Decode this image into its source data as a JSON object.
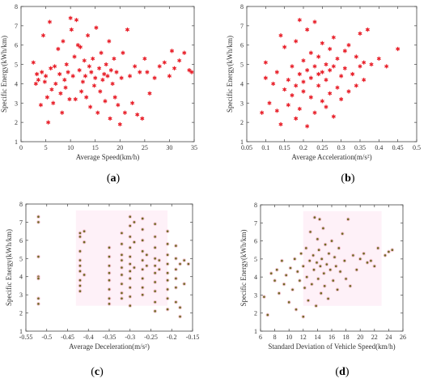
{
  "chart_data": [
    {
      "id": "a",
      "type": "scatter",
      "caption": "a",
      "xlabel": "Average Speed(km/h)",
      "ylabel": "Specific Energy(kWh/km)",
      "xlim": [
        0,
        35
      ],
      "ylim": [
        1,
        8
      ],
      "xticks": [
        "0",
        "5",
        "10",
        "15",
        "20",
        "25",
        "30",
        "35"
      ],
      "yticks": [
        "1",
        "2",
        "3",
        "4",
        "5",
        "6",
        "7",
        "8"
      ],
      "grid": false,
      "marker": "red-star",
      "color": "#e8202a",
      "points": [
        [
          2.5,
          5.1
        ],
        [
          3,
          4.0
        ],
        [
          3.2,
          4.5
        ],
        [
          3.5,
          4.2
        ],
        [
          4,
          2.9
        ],
        [
          4.2,
          4.6
        ],
        [
          4.5,
          6.5
        ],
        [
          4.8,
          4.1
        ],
        [
          5,
          4.4
        ],
        [
          5.3,
          3.3
        ],
        [
          5.5,
          2.0
        ],
        [
          5.8,
          7.2
        ],
        [
          6,
          4.8
        ],
        [
          6.2,
          3.7
        ],
        [
          6.5,
          3.0
        ],
        [
          6.8,
          4.9
        ],
        [
          7,
          4.0
        ],
        [
          7.5,
          5.8
        ],
        [
          7.8,
          4.5
        ],
        [
          8,
          3.5
        ],
        [
          8.3,
          2.5
        ],
        [
          8.5,
          6.2
        ],
        [
          8.8,
          4.2
        ],
        [
          9,
          3.8
        ],
        [
          9.2,
          5.0
        ],
        [
          9.5,
          4.6
        ],
        [
          9.8,
          3.2
        ],
        [
          10,
          7.4
        ],
        [
          10.2,
          6.8
        ],
        [
          10.5,
          4.4
        ],
        [
          10.8,
          5.4
        ],
        [
          11,
          3.2
        ],
        [
          11.2,
          7.3
        ],
        [
          11.5,
          6.0
        ],
        [
          11.8,
          4.7
        ],
        [
          12,
          5.9
        ],
        [
          12.2,
          3.6
        ],
        [
          12.5,
          4.1
        ],
        [
          12.8,
          5.2
        ],
        [
          13,
          4.4
        ],
        [
          13.2,
          3.3
        ],
        [
          13.5,
          6.5
        ],
        [
          13.8,
          4.9
        ],
        [
          14,
          2.8
        ],
        [
          14.2,
          4.6
        ],
        [
          14.5,
          5.3
        ],
        [
          14.8,
          3.9
        ],
        [
          15,
          4.3
        ],
        [
          15.2,
          6.9
        ],
        [
          15.5,
          2.5
        ],
        [
          15.8,
          4.8
        ],
        [
          16,
          3.6
        ],
        [
          16.2,
          5.6
        ],
        [
          16.5,
          4.2
        ],
        [
          16.8,
          4.5
        ],
        [
          17,
          3.1
        ],
        [
          17.2,
          5.0
        ],
        [
          17.5,
          4.4
        ],
        [
          17.8,
          6.2
        ],
        [
          18,
          2.2
        ],
        [
          18.2,
          4.7
        ],
        [
          18.5,
          4.0
        ],
        [
          18.8,
          5.3
        ],
        [
          19,
          3.3
        ],
        [
          19.3,
          4.6
        ],
        [
          19.6,
          2.9
        ],
        [
          20,
          1.9
        ],
        [
          20.3,
          4.3
        ],
        [
          20.6,
          5.6
        ],
        [
          21,
          2.5
        ],
        [
          21.5,
          6.8
        ],
        [
          22,
          4.4
        ],
        [
          22.5,
          3.0
        ],
        [
          23,
          4.9
        ],
        [
          23.5,
          2.4
        ],
        [
          24,
          4.6
        ],
        [
          24.5,
          2.2
        ],
        [
          25,
          5.3
        ],
        [
          25.5,
          4.6
        ],
        [
          26,
          3.5
        ],
        [
          27,
          4.3
        ],
        [
          28,
          4.9
        ],
        [
          29,
          5.1
        ],
        [
          30,
          4.4
        ],
        [
          30.5,
          5.7
        ],
        [
          31,
          4.8
        ],
        [
          32,
          5.2
        ],
        [
          33,
          5.6
        ],
        [
          34,
          4.7
        ],
        [
          34.5,
          4.6
        ]
      ]
    },
    {
      "id": "b",
      "type": "scatter",
      "caption": "b",
      "xlabel": "Average Acceleration(m/s²)",
      "ylabel": "Specific Energy(kWh/km)",
      "xlim": [
        0.05,
        0.5
      ],
      "ylim": [
        1,
        8
      ],
      "xticks": [
        "0.05",
        "0.1",
        "0.15",
        "0.2",
        "0.25",
        "0.3",
        "0.35",
        "0.4",
        "0.45",
        "0.5"
      ],
      "yticks": [
        "1",
        "2",
        "3",
        "4",
        "5",
        "6",
        "7",
        "8"
      ],
      "grid": false,
      "marker": "red-star",
      "color": "#e8202a",
      "points": [
        [
          0.09,
          2.5
        ],
        [
          0.1,
          4.3
        ],
        [
          0.1,
          5.1
        ],
        [
          0.11,
          3.0
        ],
        [
          0.12,
          4.0
        ],
        [
          0.13,
          2.6
        ],
        [
          0.13,
          4.6
        ],
        [
          0.14,
          6.5
        ],
        [
          0.14,
          1.9
        ],
        [
          0.15,
          3.7
        ],
        [
          0.15,
          5.9
        ],
        [
          0.16,
          4.2
        ],
        [
          0.16,
          2.9
        ],
        [
          0.17,
          3.4
        ],
        [
          0.17,
          4.9
        ],
        [
          0.18,
          2.2
        ],
        [
          0.18,
          3.9
        ],
        [
          0.18,
          6.2
        ],
        [
          0.19,
          4.5
        ],
        [
          0.19,
          2.7
        ],
        [
          0.19,
          7.3
        ],
        [
          0.2,
          3.6
        ],
        [
          0.2,
          5.2
        ],
        [
          0.2,
          4.1
        ],
        [
          0.21,
          1.8
        ],
        [
          0.21,
          4.7
        ],
        [
          0.21,
          6.8
        ],
        [
          0.22,
          3.3
        ],
        [
          0.22,
          5.6
        ],
        [
          0.22,
          4.3
        ],
        [
          0.23,
          2.5
        ],
        [
          0.23,
          4.9
        ],
        [
          0.23,
          7.2
        ],
        [
          0.24,
          3.9
        ],
        [
          0.24,
          5.4
        ],
        [
          0.24,
          4.5
        ],
        [
          0.25,
          3.1
        ],
        [
          0.25,
          6.1
        ],
        [
          0.25,
          4.6
        ],
        [
          0.26,
          2.8
        ],
        [
          0.26,
          5.0
        ],
        [
          0.26,
          4.2
        ],
        [
          0.27,
          3.5
        ],
        [
          0.27,
          5.8
        ],
        [
          0.27,
          4.7
        ],
        [
          0.28,
          2.3
        ],
        [
          0.28,
          4.9
        ],
        [
          0.28,
          6.4
        ],
        [
          0.29,
          3.8
        ],
        [
          0.29,
          5.3
        ],
        [
          0.3,
          4.4
        ],
        [
          0.3,
          3.2
        ],
        [
          0.31,
          5.7
        ],
        [
          0.31,
          4.8
        ],
        [
          0.32,
          3.6
        ],
        [
          0.32,
          6.0
        ],
        [
          0.33,
          4.5
        ],
        [
          0.34,
          5.4
        ],
        [
          0.34,
          3.9
        ],
        [
          0.35,
          6.6
        ],
        [
          0.35,
          4.9
        ],
        [
          0.36,
          5.1
        ],
        [
          0.36,
          4.2
        ],
        [
          0.37,
          6.8
        ],
        [
          0.38,
          5.0
        ],
        [
          0.4,
          5.3
        ],
        [
          0.42,
          4.9
        ],
        [
          0.45,
          5.8
        ]
      ]
    },
    {
      "id": "c",
      "type": "scatter",
      "caption": "c",
      "xlabel": "Average Deceleration(m/s²)",
      "ylabel": "Specific Energy(kWh/km)",
      "xlim": [
        -0.55,
        -0.15
      ],
      "ylim": [
        1,
        8
      ],
      "xticks": [
        "-0.55",
        "-0.5",
        "-0.45",
        "-0.4",
        "-0.35",
        "-0.3",
        "-0.25",
        "-0.2",
        "-0.15"
      ],
      "yticks": [
        "1",
        "2",
        "3",
        "4",
        "5",
        "6",
        "7",
        "8"
      ],
      "grid": false,
      "marker": "olive-dot",
      "color": "#6b6b22",
      "points": [
        [
          -0.52,
          7.3
        ],
        [
          -0.52,
          7.0
        ],
        [
          -0.52,
          5.1
        ],
        [
          -0.52,
          4.0
        ],
        [
          -0.52,
          3.9
        ],
        [
          -0.52,
          2.8
        ],
        [
          -0.52,
          2.5
        ],
        [
          -0.42,
          6.4
        ],
        [
          -0.42,
          6.2
        ],
        [
          -0.42,
          5.4
        ],
        [
          -0.42,
          4.9
        ],
        [
          -0.42,
          4.6
        ],
        [
          -0.42,
          4.3
        ],
        [
          -0.42,
          3.8
        ],
        [
          -0.42,
          3.5
        ],
        [
          -0.42,
          3.2
        ],
        [
          -0.41,
          6.5
        ],
        [
          -0.41,
          5.9
        ],
        [
          -0.41,
          4.1
        ],
        [
          -0.35,
          5.6
        ],
        [
          -0.35,
          5.1
        ],
        [
          -0.35,
          4.6
        ],
        [
          -0.35,
          4.2
        ],
        [
          -0.35,
          3.8
        ],
        [
          -0.35,
          3.3
        ],
        [
          -0.35,
          2.8
        ],
        [
          -0.35,
          2.5
        ],
        [
          -0.32,
          6.4
        ],
        [
          -0.32,
          5.8
        ],
        [
          -0.32,
          5.2
        ],
        [
          -0.32,
          4.9
        ],
        [
          -0.32,
          4.5
        ],
        [
          -0.32,
          4.1
        ],
        [
          -0.32,
          3.6
        ],
        [
          -0.32,
          3.1
        ],
        [
          -0.32,
          2.8
        ],
        [
          -0.3,
          7.3
        ],
        [
          -0.3,
          6.8
        ],
        [
          -0.3,
          6.2
        ],
        [
          -0.3,
          5.6
        ],
        [
          -0.3,
          5.1
        ],
        [
          -0.3,
          4.7
        ],
        [
          -0.3,
          4.3
        ],
        [
          -0.3,
          3.9
        ],
        [
          -0.3,
          3.4
        ],
        [
          -0.3,
          2.9
        ],
        [
          -0.3,
          2.4
        ],
        [
          -0.29,
          7.0
        ],
        [
          -0.29,
          5.9
        ],
        [
          -0.29,
          4.5
        ],
        [
          -0.27,
          7.2
        ],
        [
          -0.27,
          6.6
        ],
        [
          -0.27,
          6.0
        ],
        [
          -0.27,
          5.4
        ],
        [
          -0.27,
          4.9
        ],
        [
          -0.27,
          4.4
        ],
        [
          -0.27,
          3.9
        ],
        [
          -0.27,
          3.4
        ],
        [
          -0.27,
          3.0
        ],
        [
          -0.26,
          5.2
        ],
        [
          -0.26,
          4.6
        ],
        [
          -0.24,
          6.9
        ],
        [
          -0.24,
          6.2
        ],
        [
          -0.24,
          5.6
        ],
        [
          -0.24,
          5.0
        ],
        [
          -0.24,
          4.6
        ],
        [
          -0.24,
          4.2
        ],
        [
          -0.24,
          3.7
        ],
        [
          -0.24,
          3.2
        ],
        [
          -0.24,
          2.6
        ],
        [
          -0.24,
          2.1
        ],
        [
          -0.23,
          4.9
        ],
        [
          -0.23,
          4.4
        ],
        [
          -0.21,
          6.5
        ],
        [
          -0.21,
          5.8
        ],
        [
          -0.21,
          5.2
        ],
        [
          -0.21,
          4.7
        ],
        [
          -0.21,
          4.2
        ],
        [
          -0.21,
          3.8
        ],
        [
          -0.21,
          3.3
        ],
        [
          -0.21,
          2.8
        ],
        [
          -0.21,
          2.2
        ],
        [
          -0.19,
          5.7
        ],
        [
          -0.19,
          5.0
        ],
        [
          -0.19,
          4.4
        ],
        [
          -0.19,
          3.9
        ],
        [
          -0.19,
          3.4
        ],
        [
          -0.19,
          2.6
        ],
        [
          -0.18,
          4.7
        ],
        [
          -0.18,
          2.3
        ],
        [
          -0.18,
          1.8
        ],
        [
          -0.17,
          4.9
        ],
        [
          -0.17,
          3.6
        ],
        [
          -0.16,
          4.7
        ]
      ]
    },
    {
      "id": "d",
      "type": "scatter",
      "caption": "d",
      "xlabel": "Standard Deviation of Vehicle Speed(km/h)",
      "ylabel": "Specific Energy(kWh/km)",
      "xlim": [
        6,
        26
      ],
      "ylim": [
        1,
        8
      ],
      "xticks": [
        "6",
        "8",
        "10",
        "12",
        "14",
        "16",
        "18",
        "20",
        "22",
        "24",
        "26"
      ],
      "yticks": [
        "1",
        "2",
        "3",
        "4",
        "5",
        "6",
        "7",
        "8"
      ],
      "grid": false,
      "marker": "olive-dot",
      "color": "#6b6b22",
      "points": [
        [
          6.5,
          2.9
        ],
        [
          7,
          1.9
        ],
        [
          7.5,
          4.2
        ],
        [
          8,
          3.8
        ],
        [
          8.3,
          4.4
        ],
        [
          8.6,
          3.1
        ],
        [
          9,
          4.9
        ],
        [
          9.3,
          3.6
        ],
        [
          9.6,
          4.1
        ],
        [
          10,
          2.6
        ],
        [
          10.2,
          4.5
        ],
        [
          10.5,
          3.3
        ],
        [
          10.8,
          5.0
        ],
        [
          11,
          2.2
        ],
        [
          11.2,
          4.3
        ],
        [
          11.5,
          3.8
        ],
        [
          11.7,
          5.3
        ],
        [
          12,
          1.8
        ],
        [
          12,
          4.6
        ],
        [
          12.2,
          3.4
        ],
        [
          12.4,
          5.6
        ],
        [
          12.5,
          4.0
        ],
        [
          12.7,
          2.7
        ],
        [
          12.9,
          4.9
        ],
        [
          13,
          6.5
        ],
        [
          13.2,
          3.6
        ],
        [
          13.4,
          5.2
        ],
        [
          13.5,
          4.4
        ],
        [
          13.6,
          7.3
        ],
        [
          13.8,
          2.4
        ],
        [
          13.9,
          4.8
        ],
        [
          14,
          6.1
        ],
        [
          14.1,
          3.9
        ],
        [
          14.2,
          5.5
        ],
        [
          14.3,
          7.2
        ],
        [
          14.4,
          4.6
        ],
        [
          14.5,
          3.1
        ],
        [
          14.6,
          5.0
        ],
        [
          14.8,
          6.7
        ],
        [
          14.9,
          4.2
        ],
        [
          15,
          3.5
        ],
        [
          15.1,
          5.8
        ],
        [
          15.3,
          4.7
        ],
        [
          15.5,
          2.8
        ],
        [
          15.6,
          5.3
        ],
        [
          15.8,
          4.4
        ],
        [
          16,
          6.0
        ],
        [
          16.2,
          3.8
        ],
        [
          16.4,
          5.1
        ],
        [
          16.6,
          4.6
        ],
        [
          16.8,
          3.3
        ],
        [
          17,
          5.6
        ],
        [
          17.2,
          4.3
        ],
        [
          17.5,
          6.4
        ],
        [
          17.8,
          4.9
        ],
        [
          18,
          3.9
        ],
        [
          18.3,
          7.2
        ],
        [
          18.6,
          3.5
        ],
        [
          19,
          5.2
        ],
        [
          19.5,
          4.4
        ],
        [
          20,
          5.0
        ],
        [
          20.5,
          5.3
        ],
        [
          21,
          4.8
        ],
        [
          21.5,
          4.9
        ],
        [
          22,
          4.6
        ],
        [
          22.5,
          5.6
        ],
        [
          23.5,
          5.2
        ],
        [
          24,
          5.4
        ],
        [
          24.5,
          5.5
        ]
      ]
    }
  ]
}
